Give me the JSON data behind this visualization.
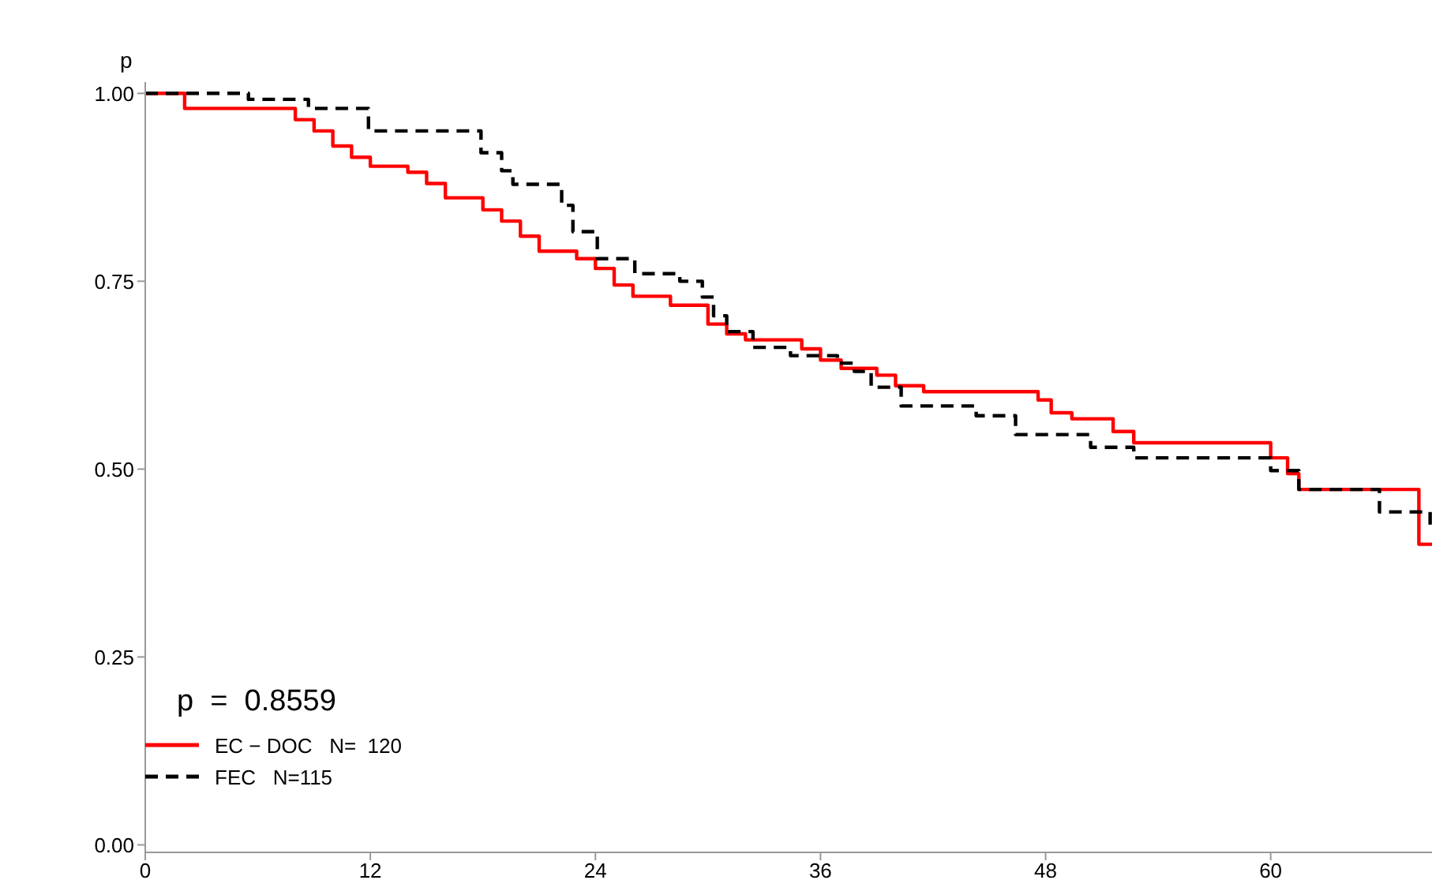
{
  "chart_data": {
    "type": "step",
    "ylabel": "p",
    "xlim": [
      0,
      68.6
    ],
    "xticks": [
      0,
      12,
      24,
      36,
      48,
      60
    ],
    "ylim": [
      -0.01,
      1.015
    ],
    "yticks": [
      {
        "value": 0,
        "label": "0.00"
      },
      {
        "value": 0.25,
        "label": "0.25"
      },
      {
        "value": 0.5,
        "label": "0.50"
      },
      {
        "value": 0.75,
        "label": "0.75"
      },
      {
        "value": 1,
        "label": "1.00"
      }
    ],
    "grid": false,
    "legend": "bottom left",
    "marker": "none",
    "annotations": [
      "p  =  0.8559"
    ],
    "series": [
      {
        "name": "EC − DOC   N=  120",
        "color": "#ff0000",
        "line_style": "solid",
        "x": [
          0,
          2.1,
          8,
          9,
          10,
          11,
          12,
          14,
          15,
          16,
          18,
          19,
          20,
          21,
          23,
          24,
          25,
          26,
          28,
          30,
          31,
          32,
          35,
          36,
          37.1,
          39,
          40,
          41.5,
          47.6,
          48.3,
          49.4,
          51.6,
          52.7,
          60,
          60.9,
          61.5,
          67.9,
          68.6
        ],
        "values": [
          1,
          0.98,
          0.965,
          0.95,
          0.93,
          0.915,
          0.903,
          0.895,
          0.88,
          0.861,
          0.845,
          0.83,
          0.81,
          0.79,
          0.78,
          0.767,
          0.745,
          0.73,
          0.718,
          0.693,
          0.68,
          0.672,
          0.66,
          0.645,
          0.634,
          0.625,
          0.611,
          0.603,
          0.592,
          0.575,
          0.567,
          0.55,
          0.535,
          0.515,
          0.494,
          0.473,
          0.4,
          0.4
        ]
      },
      {
        "name": "FEC   N=115",
        "color": "#000000",
        "line_style": "dashed",
        "x": [
          0,
          5.5,
          8.7,
          11.9,
          17.9,
          19,
          19.6,
          22.2,
          22.8,
          24.1,
          26.1,
          28.5,
          29.7,
          30.3,
          31,
          32.4,
          34.4,
          36.9,
          37.8,
          38.7,
          40.3,
          44.3,
          46.4,
          50.4,
          52.7,
          60,
          61.5,
          65.8,
          68.5,
          68.6
        ],
        "values": [
          1,
          0.992,
          0.98,
          0.95,
          0.921,
          0.897,
          0.879,
          0.851,
          0.816,
          0.78,
          0.76,
          0.75,
          0.729,
          0.704,
          0.683,
          0.662,
          0.651,
          0.641,
          0.63,
          0.609,
          0.584,
          0.571,
          0.546,
          0.529,
          0.515,
          0.498,
          0.473,
          0.443,
          0.42,
          0.42
        ]
      }
    ]
  }
}
